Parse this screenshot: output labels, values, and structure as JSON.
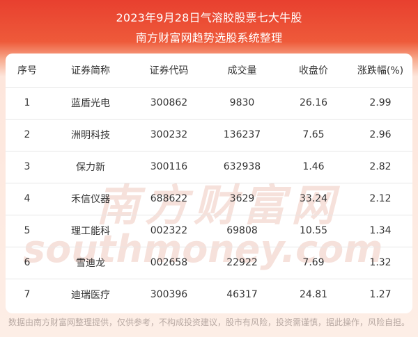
{
  "header": {
    "title": "2023年9月28日气溶胶股票七大牛股",
    "subtitle": "南方财富网趋势选股系统整理"
  },
  "table": {
    "columns": [
      "序号",
      "证券简称",
      "证券代码",
      "成交量",
      "收盘价",
      "涨跌幅(%)"
    ],
    "rows": [
      [
        "1",
        "蓝盾光电",
        "300862",
        "9830",
        "26.16",
        "2.99"
      ],
      [
        "2",
        "洲明科技",
        "300232",
        "136237",
        "7.65",
        "2.96"
      ],
      [
        "3",
        "保力新",
        "300116",
        "632938",
        "1.46",
        "2.82"
      ],
      [
        "4",
        "禾信仪器",
        "688622",
        "3629",
        "33.24",
        "2.12"
      ],
      [
        "5",
        "理工能科",
        "002322",
        "69808",
        "10.55",
        "1.34"
      ],
      [
        "6",
        "雪迪龙",
        "002658",
        "22922",
        "7.69",
        "1.32"
      ],
      [
        "7",
        "迪瑞医疗",
        "300396",
        "46317",
        "24.81",
        "1.27"
      ]
    ]
  },
  "watermark": {
    "cn": "南方财富网",
    "en": "southmoney.com"
  },
  "footer": {
    "disclaimer": "数据由南方财富网整理提供，仅供参考，不构成投资建议，股市有风险，投资需谨慎，据此操作，风险自担。"
  },
  "colors": {
    "header_red": "#e8402f",
    "watermark": "#f3d7cf"
  }
}
